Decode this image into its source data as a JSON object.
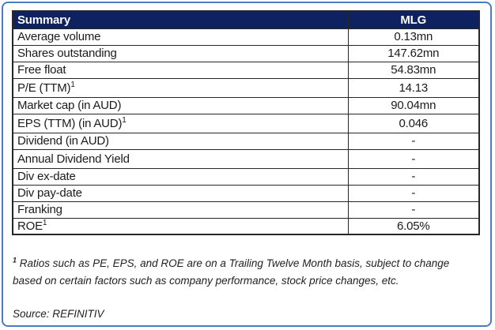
{
  "table": {
    "header": {
      "label": "Summary",
      "value": "MLG"
    },
    "rows": [
      {
        "label": "Average volume",
        "sup": "",
        "value": "0.13mn",
        "tall": false
      },
      {
        "label": "Shares outstanding",
        "sup": "",
        "value": "147.62mn",
        "tall": false
      },
      {
        "label": "Free float",
        "sup": "",
        "value": "54.83mn",
        "tall": false
      },
      {
        "label": "P/E (TTM)",
        "sup": "1",
        "value": "14.13",
        "tall": true
      },
      {
        "label": "Market cap (in AUD)",
        "sup": "",
        "value": "90.04mn",
        "tall": false
      },
      {
        "label": "EPS (TTM) (in AUD)",
        "sup": "1",
        "value": "0.046",
        "tall": true
      },
      {
        "label": "Dividend (in AUD)",
        "sup": "",
        "value": "-",
        "tall": false
      },
      {
        "label": "Annual Dividend Yield",
        "sup": "",
        "value": "-",
        "tall": true
      },
      {
        "label": "Div ex-date",
        "sup": "",
        "value": "-",
        "tall": false
      },
      {
        "label": "Div pay-date",
        "sup": "",
        "value": "-",
        "tall": false
      },
      {
        "label": "Franking",
        "sup": "",
        "value": "-",
        "tall": false
      },
      {
        "label": "ROE",
        "sup": "1",
        "value": "6.05%",
        "tall": false
      }
    ]
  },
  "footnote": {
    "sup": "1",
    "text": "Ratios such as PE, EPS, and ROE are on a Trailing Twelve Month basis, subject to change based on certain factors such as company performance, stock price changes, etc."
  },
  "source": "Source: REFINITIV",
  "colors": {
    "header_bg": "#0e2161",
    "header_text": "#ffffff",
    "frame_border": "#4a7cc2",
    "table_border": "#262626",
    "body_text": "#1b1b1b"
  }
}
